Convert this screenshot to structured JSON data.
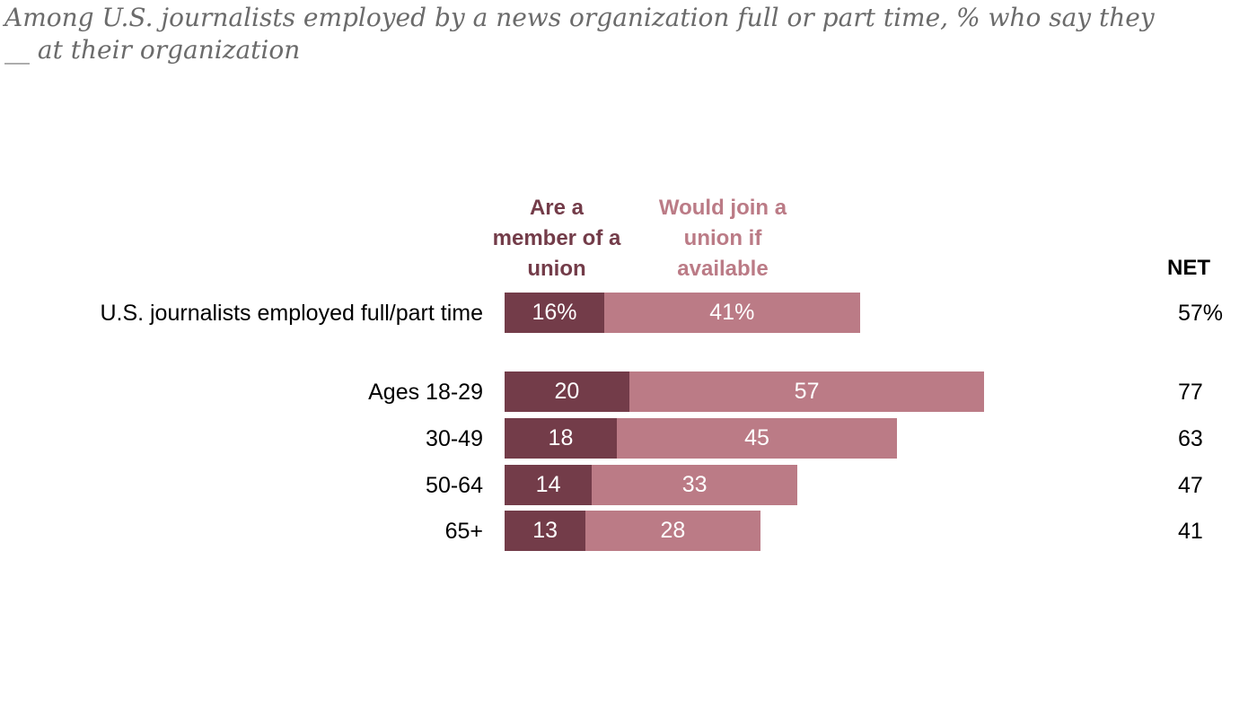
{
  "chart_data": {
    "type": "bar",
    "orientation": "horizontal",
    "stacked": true,
    "subtitle": "Among U.S. journalists employed by a news organization full or part time, % who say they __ at their organization",
    "categories": [
      "U.S. journalists employed full/part time",
      "Ages 18-29",
      "30-49",
      "50-64",
      "65+"
    ],
    "series": [
      {
        "name": "Are a member of a union",
        "color": "#733c49",
        "values": [
          16,
          20,
          18,
          14,
          13
        ],
        "labels": [
          "16%",
          "20",
          "18",
          "14",
          "13"
        ]
      },
      {
        "name": "Would join a union if available",
        "color": "#bb7b86",
        "values": [
          41,
          57,
          45,
          33,
          28
        ],
        "labels": [
          "41%",
          "57",
          "45",
          "33",
          "28"
        ]
      }
    ],
    "net": {
      "header": "NET",
      "values": [
        57,
        77,
        63,
        47,
        41
      ],
      "labels": [
        "57%",
        "77",
        "63",
        "47",
        "41"
      ]
    },
    "grid": false
  }
}
